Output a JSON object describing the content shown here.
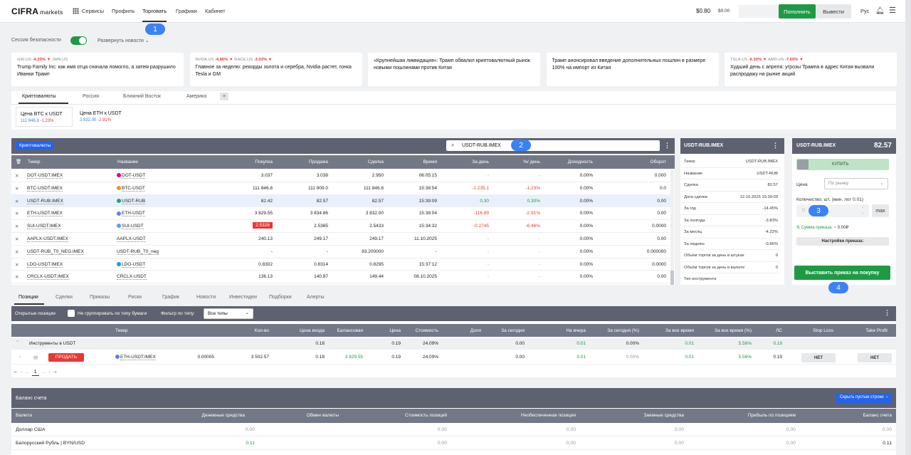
{
  "app": {
    "logo": "CIFRA",
    "logo_sub": "markets"
  },
  "nav": {
    "services": "Сервисы",
    "profile": "Профиль",
    "trade": "Торговать",
    "charts": "Графики",
    "cabinet": "Кабинет"
  },
  "header": {
    "balance": "$0.80",
    "balance2": "$0.00",
    "deposit": "Пополнить",
    "withdraw": "Вывести",
    "lang": "Рус"
  },
  "badges": [
    "1",
    "2",
    "3",
    "4"
  ],
  "session": {
    "label": "Сессия безопасности",
    "expand": "Развернуть новости"
  },
  "news": [
    {
      "tickers": [
        {
          "t": "GRI.US",
          "c": "-4.20%"
        },
        {
          "t": "JWN.US",
          "c": ""
        }
      ],
      "text": "Trump Family Inc: как имя отца сначала помогло, а затем разрушило Иванки Трамп"
    },
    {
      "tickers": [
        {
          "t": "NVDA.US",
          "c": "-4.86%"
        },
        {
          "t": "RACE.US",
          "c": "-3.03%"
        }
      ],
      "text": "Главное за неделю: рекорды золота и серебра, Nvidia растет, гонка Tesla и GM"
    },
    {
      "tickers": [],
      "text": "«Крупнейшая ликвидация»: Трамп обвалил криптовалютный рынок новыми пошлинами против Китая"
    },
    {
      "tickers": [],
      "text": "Трамп анонсировал введение дополнительных пошлин в размере 100% на импорт из Китая"
    },
    {
      "tickers": [
        {
          "t": "TSLA.US",
          "c": "-6.30%"
        },
        {
          "t": "AMD.US",
          "c": "-7.60%"
        }
      ],
      "text": "Худший день с апреля: угрозы Трампа в адрес Китая вызвали распродажу на рынке акций"
    }
  ],
  "market_tabs": [
    "Криптовалюты",
    "Россия",
    "Ближний Восток",
    "Америка"
  ],
  "quotes": [
    {
      "name": "Цена BTC к USDT",
      "price": "111 846.8",
      "chg": "-1.23%"
    },
    {
      "name": "Цена ETH к USDT",
      "price": "3 832.00",
      "chg": "-2.91%"
    }
  ],
  "watchlist": {
    "tag": "Криптовалюты",
    "search_value": "USDT-RUB.IMEX",
    "columns": [
      "Тикер",
      "Название",
      "Покупка",
      "Продажа",
      "Сделка",
      "Время",
      "За день",
      "%/ день",
      "Доходность",
      "Оборот"
    ],
    "rows": [
      {
        "ticker": "DOT-USDT.IMEX",
        "name": "DOT-USDT",
        "buy": "3.037",
        "sell": "3.038",
        "deal": "2.950",
        "time": "06:05:15",
        "day": "-",
        "pct": "-",
        "yield": "0.00%",
        "turnover": "0.000",
        "coin": "#e6007a",
        "c": ""
      },
      {
        "ticker": "BTC-USDT.IMEX",
        "name": "BTC-USDT",
        "buy": "111 846.8",
        "sell": "111 909.0",
        "deal": "111 846.8",
        "time": "15:38:54",
        "day": "-1 235.1",
        "pct": "-1.23%",
        "yield": "0.00%",
        "turnover": "0.0",
        "coin": "#f7931a",
        "c": "dn"
      },
      {
        "ticker": "USDT-RUB.IMEX",
        "name": "USDT-RUB",
        "buy": "82.42",
        "sell": "82.57",
        "deal": "82.57",
        "time": "15:39:09",
        "day": "0.30",
        "pct": "0.30%",
        "yield": "0.00%",
        "turnover": "0.00",
        "coin": "#26a17b",
        "c": "up"
      },
      {
        "ticker": "ETH-USDT.IMEX",
        "name": "ETH-USDT",
        "buy": "3 829.55",
        "sell": "3 834.86",
        "deal": "3 832.00",
        "time": "15:38:04",
        "day": "-116.89",
        "pct": "-2.91%",
        "yield": "0.00%",
        "turnover": "0.00",
        "coin": "#627eea",
        "c": "dn"
      },
      {
        "ticker": "SUI-USDT.IMEX",
        "name": "SUI-USDT",
        "buy": "2.5326",
        "sell": "2.5365",
        "deal": "2.5433",
        "time": "15:34:32",
        "day": "-0.2745",
        "pct": "-6.46%",
        "yield": "0.00%",
        "turnover": "0.0000",
        "coin": "#4da2ff",
        "c": "dn"
      },
      {
        "ticker": "AAPLX-USDT.IMEX",
        "name": "AAPLX-USDT",
        "buy": "240.13",
        "sell": "249.17",
        "deal": "249.17",
        "time": "11.10.2025",
        "day": "-",
        "pct": "-",
        "yield": "0.00%",
        "turnover": "0.00",
        "coin": "",
        "c": ""
      },
      {
        "ticker": "USDT-RUB_T0_NEG.IMEX",
        "name": "USDT-RUB_T0_neg",
        "buy": "-",
        "sell": "-",
        "deal": "83.200000",
        "time": "-",
        "day": "-",
        "pct": "-",
        "yield": "0.00%",
        "turnover": "0.000000",
        "coin": "",
        "c": ""
      },
      {
        "ticker": "LDO-USDT.IMEX",
        "name": "LDO-USDT",
        "buy": "0.8302",
        "sell": "0.8314",
        "deal": "0.8295",
        "time": "15:37:12",
        "day": "-",
        "pct": "-",
        "yield": "0.00%",
        "turnover": "0.0000",
        "coin": "#00a3ff",
        "c": ""
      },
      {
        "ticker": "CRCLX-USDT.IMEX",
        "name": "CRCLX-USDT",
        "buy": "136.13",
        "sell": "140.87",
        "deal": "149.44",
        "time": "08.10.2025",
        "day": "-",
        "pct": "-",
        "yield": "0.00%",
        "turnover": "0.00",
        "coin": "",
        "c": ""
      }
    ]
  },
  "info": {
    "title": "USDT-RUB.IMEX",
    "rows": [
      {
        "k": "Тикер",
        "v": "USDT-RUB.IMEX",
        "c": ""
      },
      {
        "k": "Название",
        "v": "USDT-RUB",
        "c": ""
      },
      {
        "k": "Сделка",
        "v": "82.57",
        "c": ""
      },
      {
        "k": "Дата сделки",
        "v": "12.10.2025 15:39:09",
        "c": ""
      },
      {
        "k": "За год",
        "v": "-14.45%",
        "c": "dn"
      },
      {
        "k": "За полгода",
        "v": "-3.83%",
        "c": "dn"
      },
      {
        "k": "За месяц",
        "v": "-4.22%",
        "c": "dn"
      },
      {
        "k": "За неделю",
        "v": "-0.86%",
        "c": "dn"
      },
      {
        "k": "Объём торгов за день в штуках",
        "v": "0",
        "c": ""
      },
      {
        "k": "Объём торгов за день в валюте",
        "v": "0",
        "c": ""
      },
      {
        "k": "Тип инструмента",
        "v": "",
        "c": ""
      }
    ]
  },
  "order": {
    "title": "USDT-RUB.IMEX",
    "price": "82.57",
    "buy": "КУПИТЬ",
    "price_label": "Цена",
    "price_mode": "По рынку",
    "qty_label": "Количество, шт. (мин. лот 0.01)",
    "qty_placeholder": "0",
    "max": "max",
    "sum_label": "Сумма приказа:",
    "sum_value": "~ 0.00₽",
    "settings": "Настройки приказа:",
    "submit": "Выставить приказ на покупку"
  },
  "bottom_tabs": [
    "Позиции",
    "Сделки",
    "Приказы",
    "Риски",
    "График",
    "Новости",
    "Инвестидеи",
    "Подборки",
    "Алерты"
  ],
  "positions": {
    "open_label": "Открытые позиции",
    "nogroup_label": "Не группировать по типу бумаги",
    "filter_label": "Фильтр по типу:",
    "filter_value": "Все типы",
    "columns": [
      "Тикер",
      "Кол-во",
      "Цена входа",
      "Балансовая",
      "Цена",
      "Стоимость",
      "Доля",
      "За сегодня",
      "На вчера",
      "За сегодня (%)",
      "За все время",
      "За все время (%)",
      "ЛС",
      "Stop Loss",
      "Take Profit"
    ],
    "group": {
      "name": "Инструменты в USDT",
      "balance": "0.18",
      "value": "0.19",
      "share": "24.09%",
      "today": "0.00",
      "yday": "0.01",
      "today_pct": "0.00%",
      "all": "0.01",
      "all_pct": "5.56%",
      "ls": "0.19"
    },
    "row": {
      "sell": "ПРОДАТЬ",
      "ticker": "ETH-USDT.IMEX",
      "qty": "0.00005",
      "entry": "3 502.57",
      "balance": "0.18",
      "price": "3 829.55",
      "value": "0.19",
      "share": "24.09%",
      "today": "0.00",
      "yday": "0.01",
      "today_pct": "0.00%",
      "all": "0.01",
      "all_pct": "5.56%",
      "ls": "0.19",
      "sl": "НЕТ",
      "tp": "НЕТ"
    },
    "pager": {
      "page": "1",
      "dots": "..."
    }
  },
  "balance": {
    "title": "Баланс счета",
    "hide_empty": "Скрыть пустые строки",
    "columns": [
      "Валюта",
      "Денежные средства",
      "Обмен валюты",
      "Стоимость позиций",
      "Необеспеченная позиция",
      "Заемные средства",
      "Прибыль по позициям",
      "Баланс счета"
    ],
    "rows": [
      {
        "cur": "Доллар США",
        "cash": "0.00",
        "c1": "",
        "pos": "0.00",
        "unc": "0.00",
        "loan": "0.00",
        "pnl": "0.00",
        "bal": "0.00"
      },
      {
        "cur": "Белорусский Рубль | BYN/USD",
        "cash": "0.11",
        "c1": "up",
        "pos": "0.00",
        "unc": "0.00",
        "loan": "0.00",
        "pnl": "0.00",
        "bal": "0.11"
      }
    ]
  }
}
